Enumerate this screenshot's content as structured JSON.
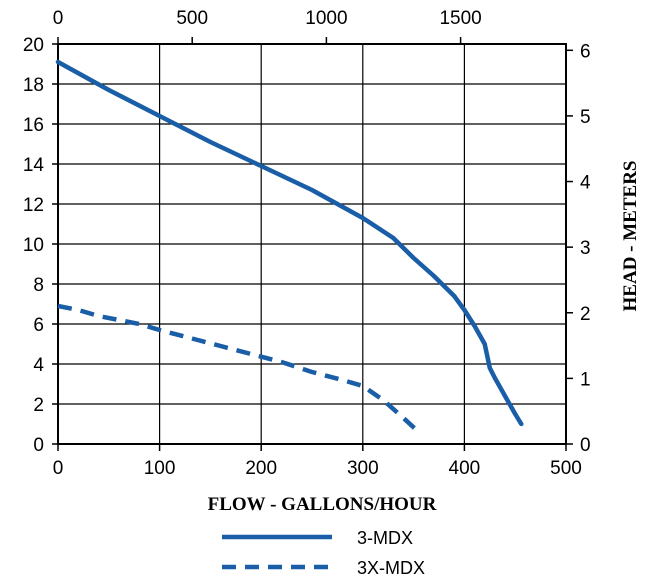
{
  "chart_data": {
    "type": "line",
    "title": "",
    "xlabel": "FLOW - GALLONS/HOUR",
    "ylabel_right": "HEAD - METERS",
    "xlim": [
      0,
      500
    ],
    "ylim": [
      0,
      20
    ],
    "x_ticks": [
      "0",
      "100",
      "200",
      "300",
      "400",
      "500"
    ],
    "y_ticks": [
      "0",
      "2",
      "4",
      "6",
      "8",
      "10",
      "12",
      "14",
      "16",
      "18",
      "20"
    ],
    "top_axis": {
      "lim": [
        0,
        1892.7
      ],
      "ticks": [
        {
          "value": 0,
          "label": "0"
        },
        {
          "value": 500,
          "label": "500"
        },
        {
          "value": 1000,
          "label": "1000"
        },
        {
          "value": 1500,
          "label": "1500"
        }
      ]
    },
    "right_axis": {
      "lim": [
        0,
        6.096
      ],
      "ticks": [
        {
          "value": 0,
          "label": "0"
        },
        {
          "value": 1,
          "label": "1"
        },
        {
          "value": 2,
          "label": "2"
        },
        {
          "value": 3,
          "label": "3"
        },
        {
          "value": 4,
          "label": "4"
        },
        {
          "value": 5,
          "label": "5"
        },
        {
          "value": 6,
          "label": "6"
        }
      ]
    },
    "grid": true,
    "legend_position": "bottom",
    "series": [
      {
        "name": "3-MDX",
        "style": "solid",
        "color": "#1a5ea8",
        "x": [
          0,
          50,
          100,
          150,
          200,
          250,
          300,
          330,
          350,
          370,
          390,
          400,
          410,
          420,
          425,
          430,
          440,
          450,
          456
        ],
        "y": [
          19.1,
          17.7,
          16.4,
          15.1,
          13.9,
          12.7,
          11.3,
          10.3,
          9.3,
          8.4,
          7.4,
          6.7,
          5.9,
          5.0,
          3.8,
          3.3,
          2.4,
          1.5,
          1.0
        ]
      },
      {
        "name": "3X-MDX",
        "style": "dashed",
        "color": "#1a5ea8",
        "x": [
          0,
          20,
          40,
          60,
          80,
          100,
          130,
          160,
          190,
          220,
          250,
          280,
          300,
          320,
          340,
          355
        ],
        "y": [
          6.9,
          6.7,
          6.4,
          6.2,
          6.0,
          5.7,
          5.3,
          4.9,
          4.5,
          4.1,
          3.6,
          3.2,
          2.9,
          2.2,
          1.3,
          0.6
        ]
      }
    ]
  }
}
